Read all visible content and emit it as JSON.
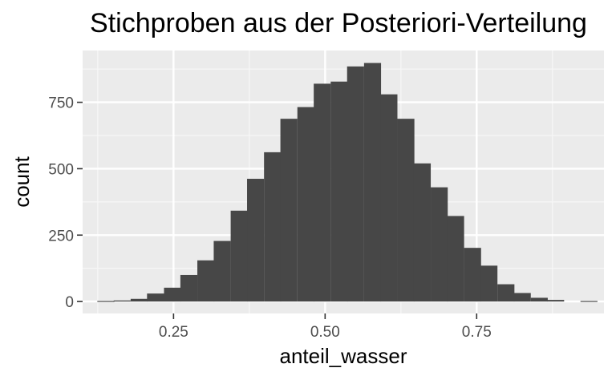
{
  "chart_data": {
    "type": "bar",
    "title": "Stichproben aus der Posteriori-Verteilung",
    "xlabel": "anteil_wasser",
    "ylabel": "count",
    "xlim": [
      0.1,
      0.96
    ],
    "ylim": [
      -45,
      945
    ],
    "x_ticks": [
      0.25,
      0.5,
      0.75
    ],
    "x_tick_labels": [
      "0.25",
      "0.50",
      "0.75"
    ],
    "x_minor_ticks": [
      0.125,
      0.375,
      0.625,
      0.875
    ],
    "y_ticks": [
      0,
      250,
      500,
      750
    ],
    "y_tick_labels": [
      "0",
      "250",
      "500",
      "750"
    ],
    "y_minor_ticks": [
      125,
      375,
      625,
      875
    ],
    "grid": true,
    "bin_width": 0.0275,
    "bins": [
      {
        "x": 0.138,
        "count": 2
      },
      {
        "x": 0.165,
        "count": 4
      },
      {
        "x": 0.193,
        "count": 10
      },
      {
        "x": 0.22,
        "count": 30
      },
      {
        "x": 0.248,
        "count": 52
      },
      {
        "x": 0.275,
        "count": 100
      },
      {
        "x": 0.303,
        "count": 155
      },
      {
        "x": 0.33,
        "count": 228
      },
      {
        "x": 0.358,
        "count": 342
      },
      {
        "x": 0.385,
        "count": 462
      },
      {
        "x": 0.413,
        "count": 562
      },
      {
        "x": 0.44,
        "count": 688
      },
      {
        "x": 0.468,
        "count": 732
      },
      {
        "x": 0.495,
        "count": 820
      },
      {
        "x": 0.523,
        "count": 828
      },
      {
        "x": 0.55,
        "count": 885
      },
      {
        "x": 0.578,
        "count": 898
      },
      {
        "x": 0.605,
        "count": 780
      },
      {
        "x": 0.633,
        "count": 688
      },
      {
        "x": 0.66,
        "count": 520
      },
      {
        "x": 0.688,
        "count": 430
      },
      {
        "x": 0.715,
        "count": 322
      },
      {
        "x": 0.743,
        "count": 202
      },
      {
        "x": 0.77,
        "count": 135
      },
      {
        "x": 0.798,
        "count": 65
      },
      {
        "x": 0.825,
        "count": 32
      },
      {
        "x": 0.853,
        "count": 14
      },
      {
        "x": 0.88,
        "count": 6
      },
      {
        "x": 0.908,
        "count": 0
      },
      {
        "x": 0.935,
        "count": 2
      }
    ],
    "colors": {
      "bar": "#474747",
      "panel_background": "#ebebeb",
      "grid_major": "#ffffff",
      "grid_minor": "#f7f7f7",
      "tick_label": "#4d4d4d",
      "tick_mark": "#333333"
    }
  }
}
